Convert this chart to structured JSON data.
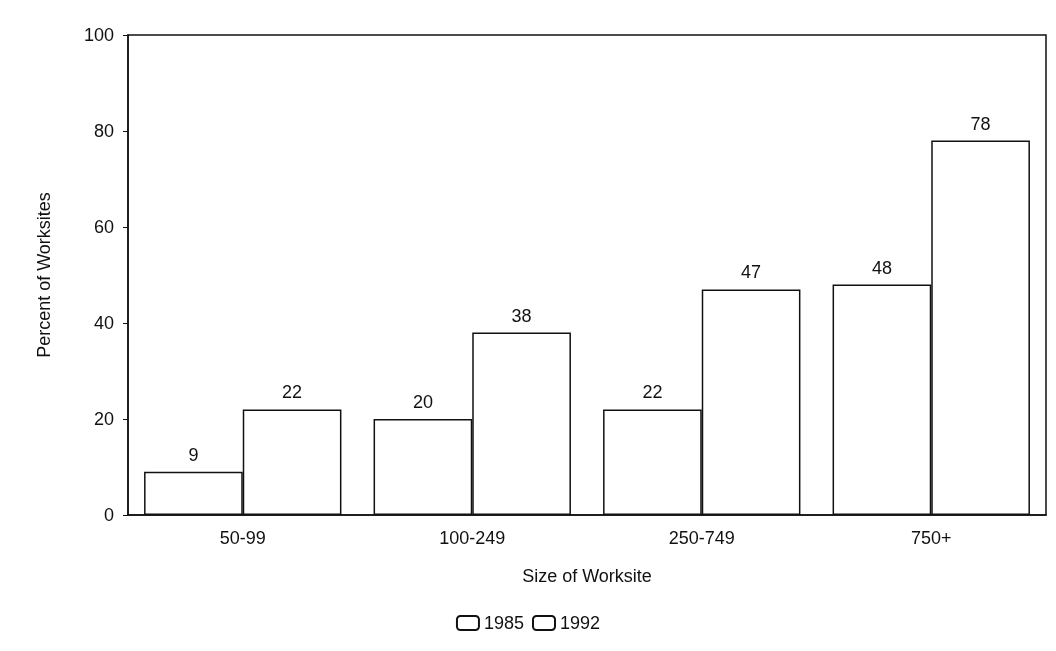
{
  "chart_data": {
    "type": "bar",
    "xlabel": "Size of Worksite",
    "ylabel": "Percent of Worksites",
    "categories": [
      "50-99",
      "100-249",
      "250-749",
      "750+"
    ],
    "series": [
      {
        "name": "1985",
        "color": "#ffffff",
        "values": [
          9,
          20,
          22,
          48
        ]
      },
      {
        "name": "1992",
        "color": "#ffffff",
        "values": [
          22,
          38,
          47,
          78
        ]
      }
    ],
    "ylim": [
      0,
      100
    ],
    "yticks": [
      0,
      20,
      40,
      60,
      80,
      100
    ],
    "data_labels": true,
    "legend": "bottom",
    "grid": false
  }
}
